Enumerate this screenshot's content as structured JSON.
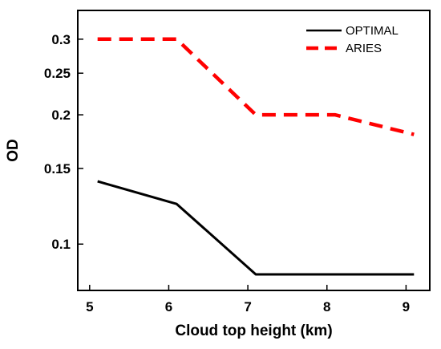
{
  "chart_data": {
    "type": "line",
    "xlabel": "Cloud top height (km)",
    "ylabel": "OD",
    "xlim": [
      4.85,
      9.3
    ],
    "ylim": [
      0.078,
      0.35
    ],
    "yscale": "log",
    "x_ticks": [
      5,
      6,
      7,
      8,
      9
    ],
    "y_ticks": [
      0.1,
      0.15,
      0.2,
      0.25,
      0.3
    ],
    "x_tick_labels": [
      "5",
      "6",
      "7",
      "8",
      "9"
    ],
    "y_tick_labels": [
      "0.1",
      "0.15",
      "0.2",
      "0.25",
      "0.3"
    ],
    "legend_position": "top-right",
    "grid": false,
    "series": [
      {
        "name": "OPTIMAL",
        "x": [
          5.1,
          6.1,
          7.1,
          8.1,
          9.1
        ],
        "values": [
          0.14,
          0.124,
          0.085,
          0.085,
          0.085
        ],
        "color": "#000000",
        "style": "solid"
      },
      {
        "name": "ARIES",
        "x": [
          5.1,
          6.1,
          7.1,
          8.1,
          9.1
        ],
        "values": [
          0.3,
          0.3,
          0.2,
          0.2,
          0.18
        ],
        "color": "#ff0000",
        "style": "dashed"
      }
    ]
  }
}
